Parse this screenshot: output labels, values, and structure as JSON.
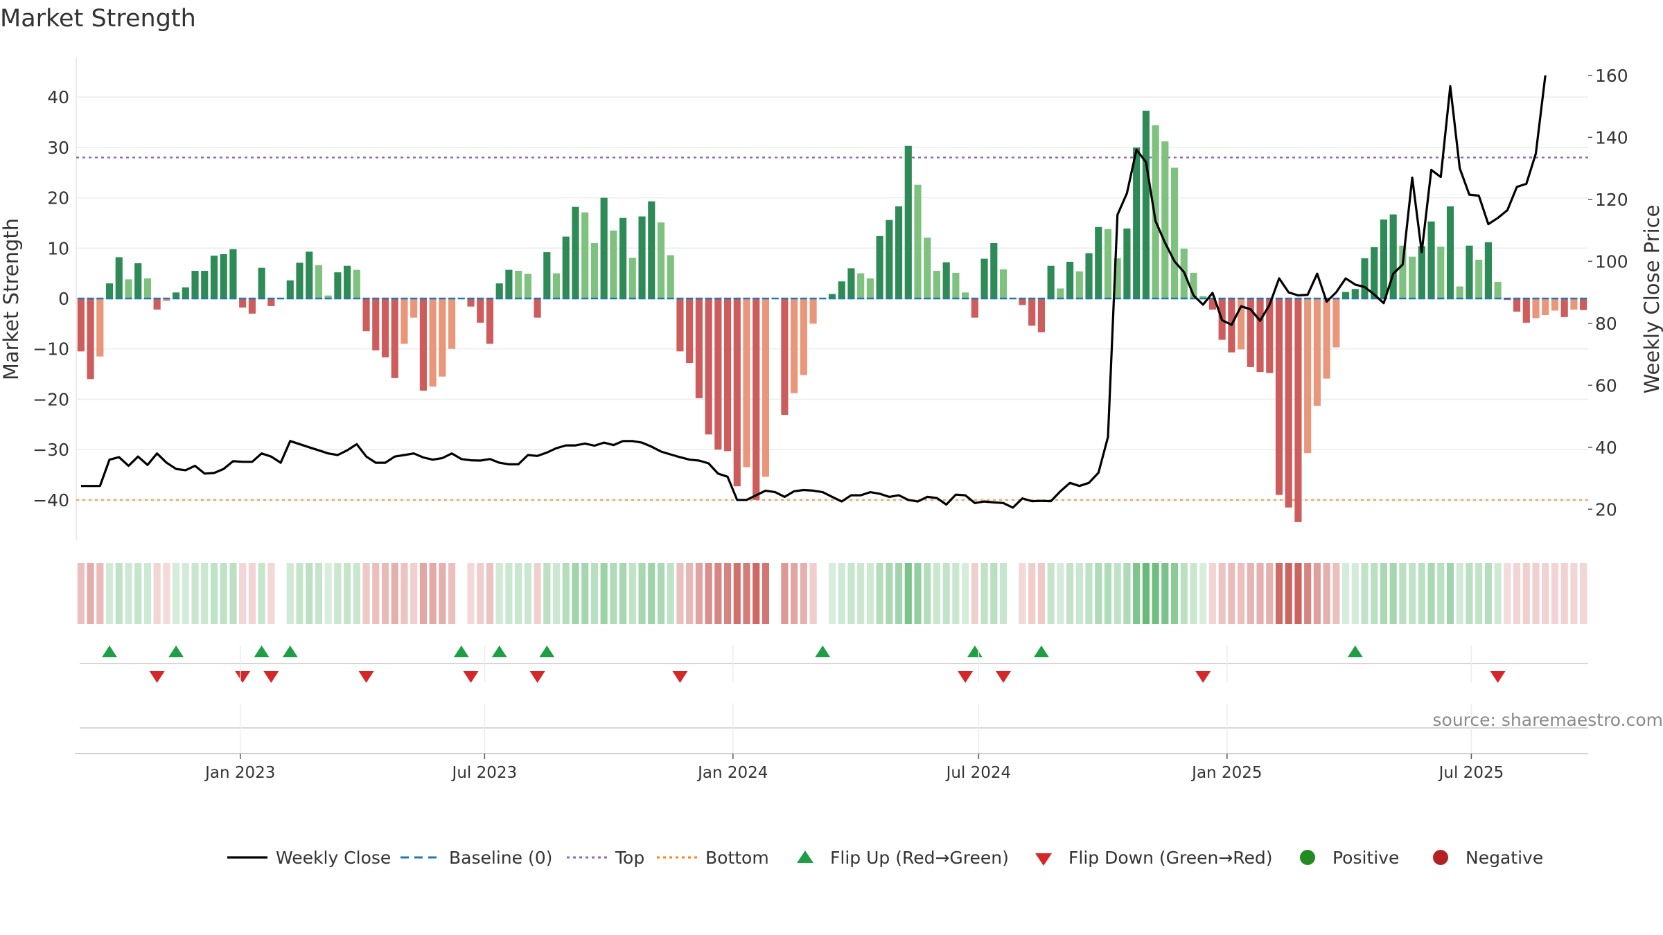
{
  "title": "Market Strength",
  "source": "source: sharemaestro.com",
  "chart_data": {
    "type": "bar",
    "title": "Market Strength",
    "ylabel": "Market Strength",
    "y2label": "Weekly Close Price",
    "ylim": [
      -48,
      48
    ],
    "y2lim": [
      10,
      166
    ],
    "yticks": [
      -40,
      -30,
      -20,
      -10,
      0,
      10,
      20,
      30,
      40
    ],
    "y2ticks": [
      20,
      40,
      60,
      80,
      100,
      120,
      140,
      160
    ],
    "top_level": 28,
    "bottom_level": -40,
    "start_date": "2022-09-05",
    "end_date": "2025-09-22",
    "x_ticks": [
      {
        "date": "2023-01-01",
        "label": "Jan 2023"
      },
      {
        "date": "2023-07-01",
        "label": "Jul 2023"
      },
      {
        "date": "2024-01-01",
        "label": "Jan 2024"
      },
      {
        "date": "2024-07-01",
        "label": "Jul 2024"
      },
      {
        "date": "2025-01-01",
        "label": "Jan 2025"
      },
      {
        "date": "2025-07-01",
        "label": "Jul 2025"
      }
    ],
    "strength": [
      -10.5,
      -16,
      -11.5,
      3,
      8.2,
      3.8,
      7,
      4,
      -2.2,
      -0.5,
      1.2,
      2.2,
      5.5,
      5.5,
      8.5,
      8.8,
      9.8,
      -1.8,
      -3,
      6.1,
      -1.5,
      0,
      3.6,
      7.1,
      9.3,
      6.6,
      0.6,
      5.2,
      6.5,
      5.7,
      -6.5,
      -10.3,
      -11.7,
      -15.8,
      -9,
      -3.8,
      -18.3,
      -17.5,
      -15.5,
      -10,
      0,
      -1.6,
      -4.8,
      -9,
      3,
      5.7,
      5.5,
      4.9,
      -3.8,
      9.2,
      5,
      12.3,
      18.2,
      17.1,
      11,
      20,
      13.5,
      16,
      8.1,
      16.3,
      19.3,
      15.1,
      8.6,
      -10.5,
      -12.8,
      -19.8,
      -27,
      -30,
      -30.3,
      -37.3,
      -33.5,
      -40,
      -35.4,
      0,
      -23.1,
      -18.8,
      -15.2,
      -5,
      0,
      0.9,
      3.4,
      6,
      5,
      4,
      12.4,
      15.6,
      18.3,
      30.3,
      22.6,
      12.1,
      5.5,
      7.2,
      5.1,
      1.2,
      -3.8,
      7.9,
      11,
      5.8,
      0,
      -1.3,
      -5.4,
      -6.7,
      6.5,
      2,
      7.3,
      5.4,
      9,
      14.2,
      13.8,
      8,
      13.9,
      30,
      37.3,
      34.4,
      31.2,
      26,
      9.9,
      5.1,
      0.5,
      -2.2,
      -8.2,
      -10.7,
      -10.1,
      -13.6,
      -14.6,
      -14.8,
      -39,
      -41.5,
      -44.4,
      -30.7,
      -21.3,
      -15.9,
      -9.7,
      1.3,
      1.9,
      8,
      10.2,
      15.7,
      16.7,
      10.5,
      8.3,
      10.4,
      15.3,
      10.3,
      18.3,
      2.4,
      10.5,
      7.7,
      11.2,
      3.3,
      -0.3,
      -2.6,
      -4.8,
      -3.9,
      -3.3,
      -2.4,
      -3.7,
      -2.2,
      -2.3
    ],
    "price": [
      27.5,
      27.5,
      27.5,
      36,
      36.8,
      34,
      37,
      34.3,
      38,
      35,
      33,
      32.6,
      34,
      31.5,
      31.7,
      33,
      35.5,
      35.3,
      35.3,
      38,
      37,
      35,
      42,
      41,
      40,
      39,
      38,
      37.5,
      39,
      41,
      37,
      35,
      35,
      37,
      37.5,
      38,
      36.7,
      36,
      36.5,
      38,
      36.2,
      35.8,
      35.7,
      36.2,
      35,
      34.5,
      34.5,
      37.5,
      37.2,
      38.3,
      39.7,
      40.6,
      40.6,
      41.2,
      40.5,
      41.5,
      40.7,
      42,
      42,
      41.5,
      40.2,
      38.6,
      37.7,
      36.8,
      36,
      35.7,
      34.8,
      31.5,
      30.5,
      23,
      23,
      24.5,
      26,
      25.5,
      24,
      25.8,
      26.2,
      26,
      25.5,
      24,
      22.5,
      24.5,
      24.5,
      25.5,
      25,
      24,
      24.5,
      23,
      22.5,
      24,
      23.6,
      21.5,
      24.7,
      24.5,
      22,
      22.5,
      22.2,
      22,
      20.5,
      23.5,
      22.6,
      22.7,
      22.6,
      25.8,
      28.5,
      27.5,
      28.5,
      31.8,
      43.3,
      115,
      122,
      136,
      132,
      113,
      106,
      100,
      96.5,
      89,
      86,
      89.8,
      81,
      79.5,
      85.5,
      84.5,
      80.8,
      86,
      94.5,
      90,
      89,
      89.2,
      96,
      87,
      90,
      94.5,
      92.5,
      91.7,
      89.3,
      86.5,
      96,
      99,
      127,
      103,
      129.5,
      127.2,
      156.5,
      130,
      121.5,
      121.2,
      112,
      114,
      116.5,
      124,
      125,
      134.8,
      160
    ],
    "flip_up_weeks": [
      3,
      10,
      19,
      22,
      40,
      44,
      49,
      78,
      94,
      101,
      134
    ],
    "flip_down_weeks": [
      8,
      17,
      20,
      30,
      41,
      48,
      63,
      93,
      97,
      118,
      149
    ],
    "legend": [
      {
        "key": "weekly_close",
        "label": "Weekly Close",
        "kind": "solid-line",
        "color": "#000000"
      },
      {
        "key": "baseline",
        "label": "Baseline (0)",
        "kind": "dashed-line",
        "color": "#1f77b4"
      },
      {
        "key": "top",
        "label": "Top",
        "kind": "dotted-line",
        "color": "#9467bd"
      },
      {
        "key": "bottom",
        "label": "Bottom",
        "kind": "dotted-line",
        "color": "#ff7f0e"
      },
      {
        "key": "flip_up",
        "label": "Flip Up (Red→Green)",
        "kind": "triangle-up",
        "color": "#1e9e47"
      },
      {
        "key": "flip_down",
        "label": "Flip Down (Green→Red)",
        "kind": "triangle-down",
        "color": "#d62728"
      },
      {
        "key": "positive",
        "label": "Positive",
        "kind": "circle",
        "color": "#228b22"
      },
      {
        "key": "negative",
        "label": "Negative",
        "kind": "circle",
        "color": "#b22222"
      }
    ],
    "colors": {
      "pos_strong": "#2e8b57",
      "pos_light": "#7fc27f",
      "neg_strong": "#cd5c5c",
      "neg_light": "#e9967a",
      "baseline": "#1f77b4",
      "top": "#9467bd",
      "bottom": "#f4a460",
      "price": "#000000"
    }
  }
}
